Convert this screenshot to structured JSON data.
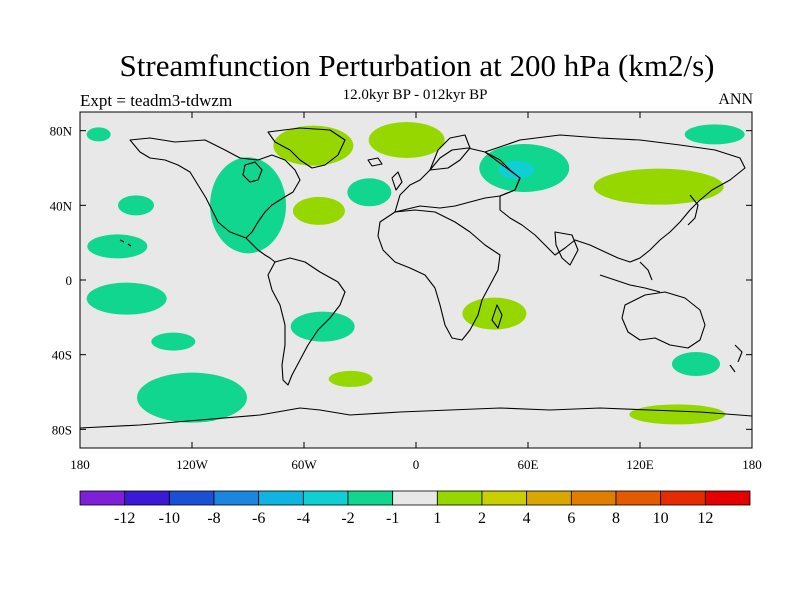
{
  "chart_data": {
    "type": "heatmap",
    "title": "Streamfunction Perturbation at 200 hPa (km2/s)",
    "experiment_label": "Expt = teadm3-tdwzm",
    "period_label": "12.0kyr BP - 012kyr BP",
    "season_label": "ANN",
    "projection": "cylindrical equidistant, global",
    "x_ticks": [
      "180",
      "120W",
      "60W",
      "0",
      "60E",
      "120E",
      "180"
    ],
    "y_ticks": [
      "80N",
      "40N",
      "0",
      "40S",
      "80S"
    ],
    "x_range": [
      -180,
      180
    ],
    "y_range": [
      -90,
      90
    ],
    "background_color": "#e8e8e8",
    "colorbar": {
      "labels": [
        "-12",
        "-10",
        "-8",
        "-6",
        "-4",
        "-2",
        "-1",
        "1",
        "2",
        "4",
        "6",
        "8",
        "10",
        "12"
      ],
      "colors": [
        "#7f20d9",
        "#3a1ad6",
        "#1a4fd6",
        "#1a86e0",
        "#10b4e0",
        "#10cfd2",
        "#10d68f",
        "#e8e8e8",
        "#97d700",
        "#c9cf00",
        "#d9a700",
        "#df7e00",
        "#e35a00",
        "#e52c00",
        "#e50000"
      ]
    },
    "regions": [
      {
        "sign": "negative",
        "level": "-2 to -1",
        "lon": -170,
        "lat": 78,
        "label": "Arctic near dateline"
      },
      {
        "sign": "negative",
        "level": "-2 to -1",
        "lon": -90,
        "lat": 40,
        "label": "North America"
      },
      {
        "sign": "negative",
        "level": "-2 to -1",
        "lon": -150,
        "lat": 40,
        "label": "North Pacific"
      },
      {
        "sign": "negative",
        "level": "-2 to -1",
        "lon": -160,
        "lat": 18,
        "label": "Central Pacific"
      },
      {
        "sign": "negative",
        "level": "-2 to -1",
        "lon": -155,
        "lat": -10,
        "label": "Tropical Pacific"
      },
      {
        "sign": "negative",
        "level": "-2 to -1",
        "lon": -130,
        "lat": -33,
        "label": "South Pacific"
      },
      {
        "sign": "negative",
        "level": "-2 to -1",
        "lon": -120,
        "lat": -63,
        "label": "Southeast Pacific"
      },
      {
        "sign": "negative",
        "level": "-2 to -1",
        "lon": -50,
        "lat": -25,
        "label": "South America east"
      },
      {
        "sign": "negative",
        "level": "-2 to -1",
        "lon": -25,
        "lat": 47,
        "label": "North Atlantic"
      },
      {
        "sign": "negative",
        "level": "-4 to -2",
        "lon": 58,
        "lat": 60,
        "label": "Western Siberia core"
      },
      {
        "sign": "negative",
        "level": "-2 to -1",
        "lon": 160,
        "lat": 78,
        "label": "East Siberian Arctic"
      },
      {
        "sign": "negative",
        "level": "-2 to -1",
        "lon": 150,
        "lat": -45,
        "label": "Tasman Sea"
      },
      {
        "sign": "positive",
        "level": "1 to 2",
        "lon": -55,
        "lat": 72,
        "label": "Greenland"
      },
      {
        "sign": "positive",
        "level": "1 to 2",
        "lon": -5,
        "lat": 75,
        "label": "Norwegian Sea"
      },
      {
        "sign": "positive",
        "level": "1 to 2",
        "lon": -52,
        "lat": 37,
        "label": "Western Atlantic"
      },
      {
        "sign": "positive",
        "level": "1 to 2",
        "lon": 130,
        "lat": 50,
        "label": "Northeast Asia"
      },
      {
        "sign": "positive",
        "level": "1 to 2",
        "lon": 42,
        "lat": -18,
        "label": "Southern Africa"
      },
      {
        "sign": "positive",
        "level": "1 to 2",
        "lon": -35,
        "lat": -53,
        "label": "South Atlantic"
      },
      {
        "sign": "positive",
        "level": "1 to 2",
        "lon": 140,
        "lat": -72,
        "label": "East Antarctica"
      }
    ]
  }
}
